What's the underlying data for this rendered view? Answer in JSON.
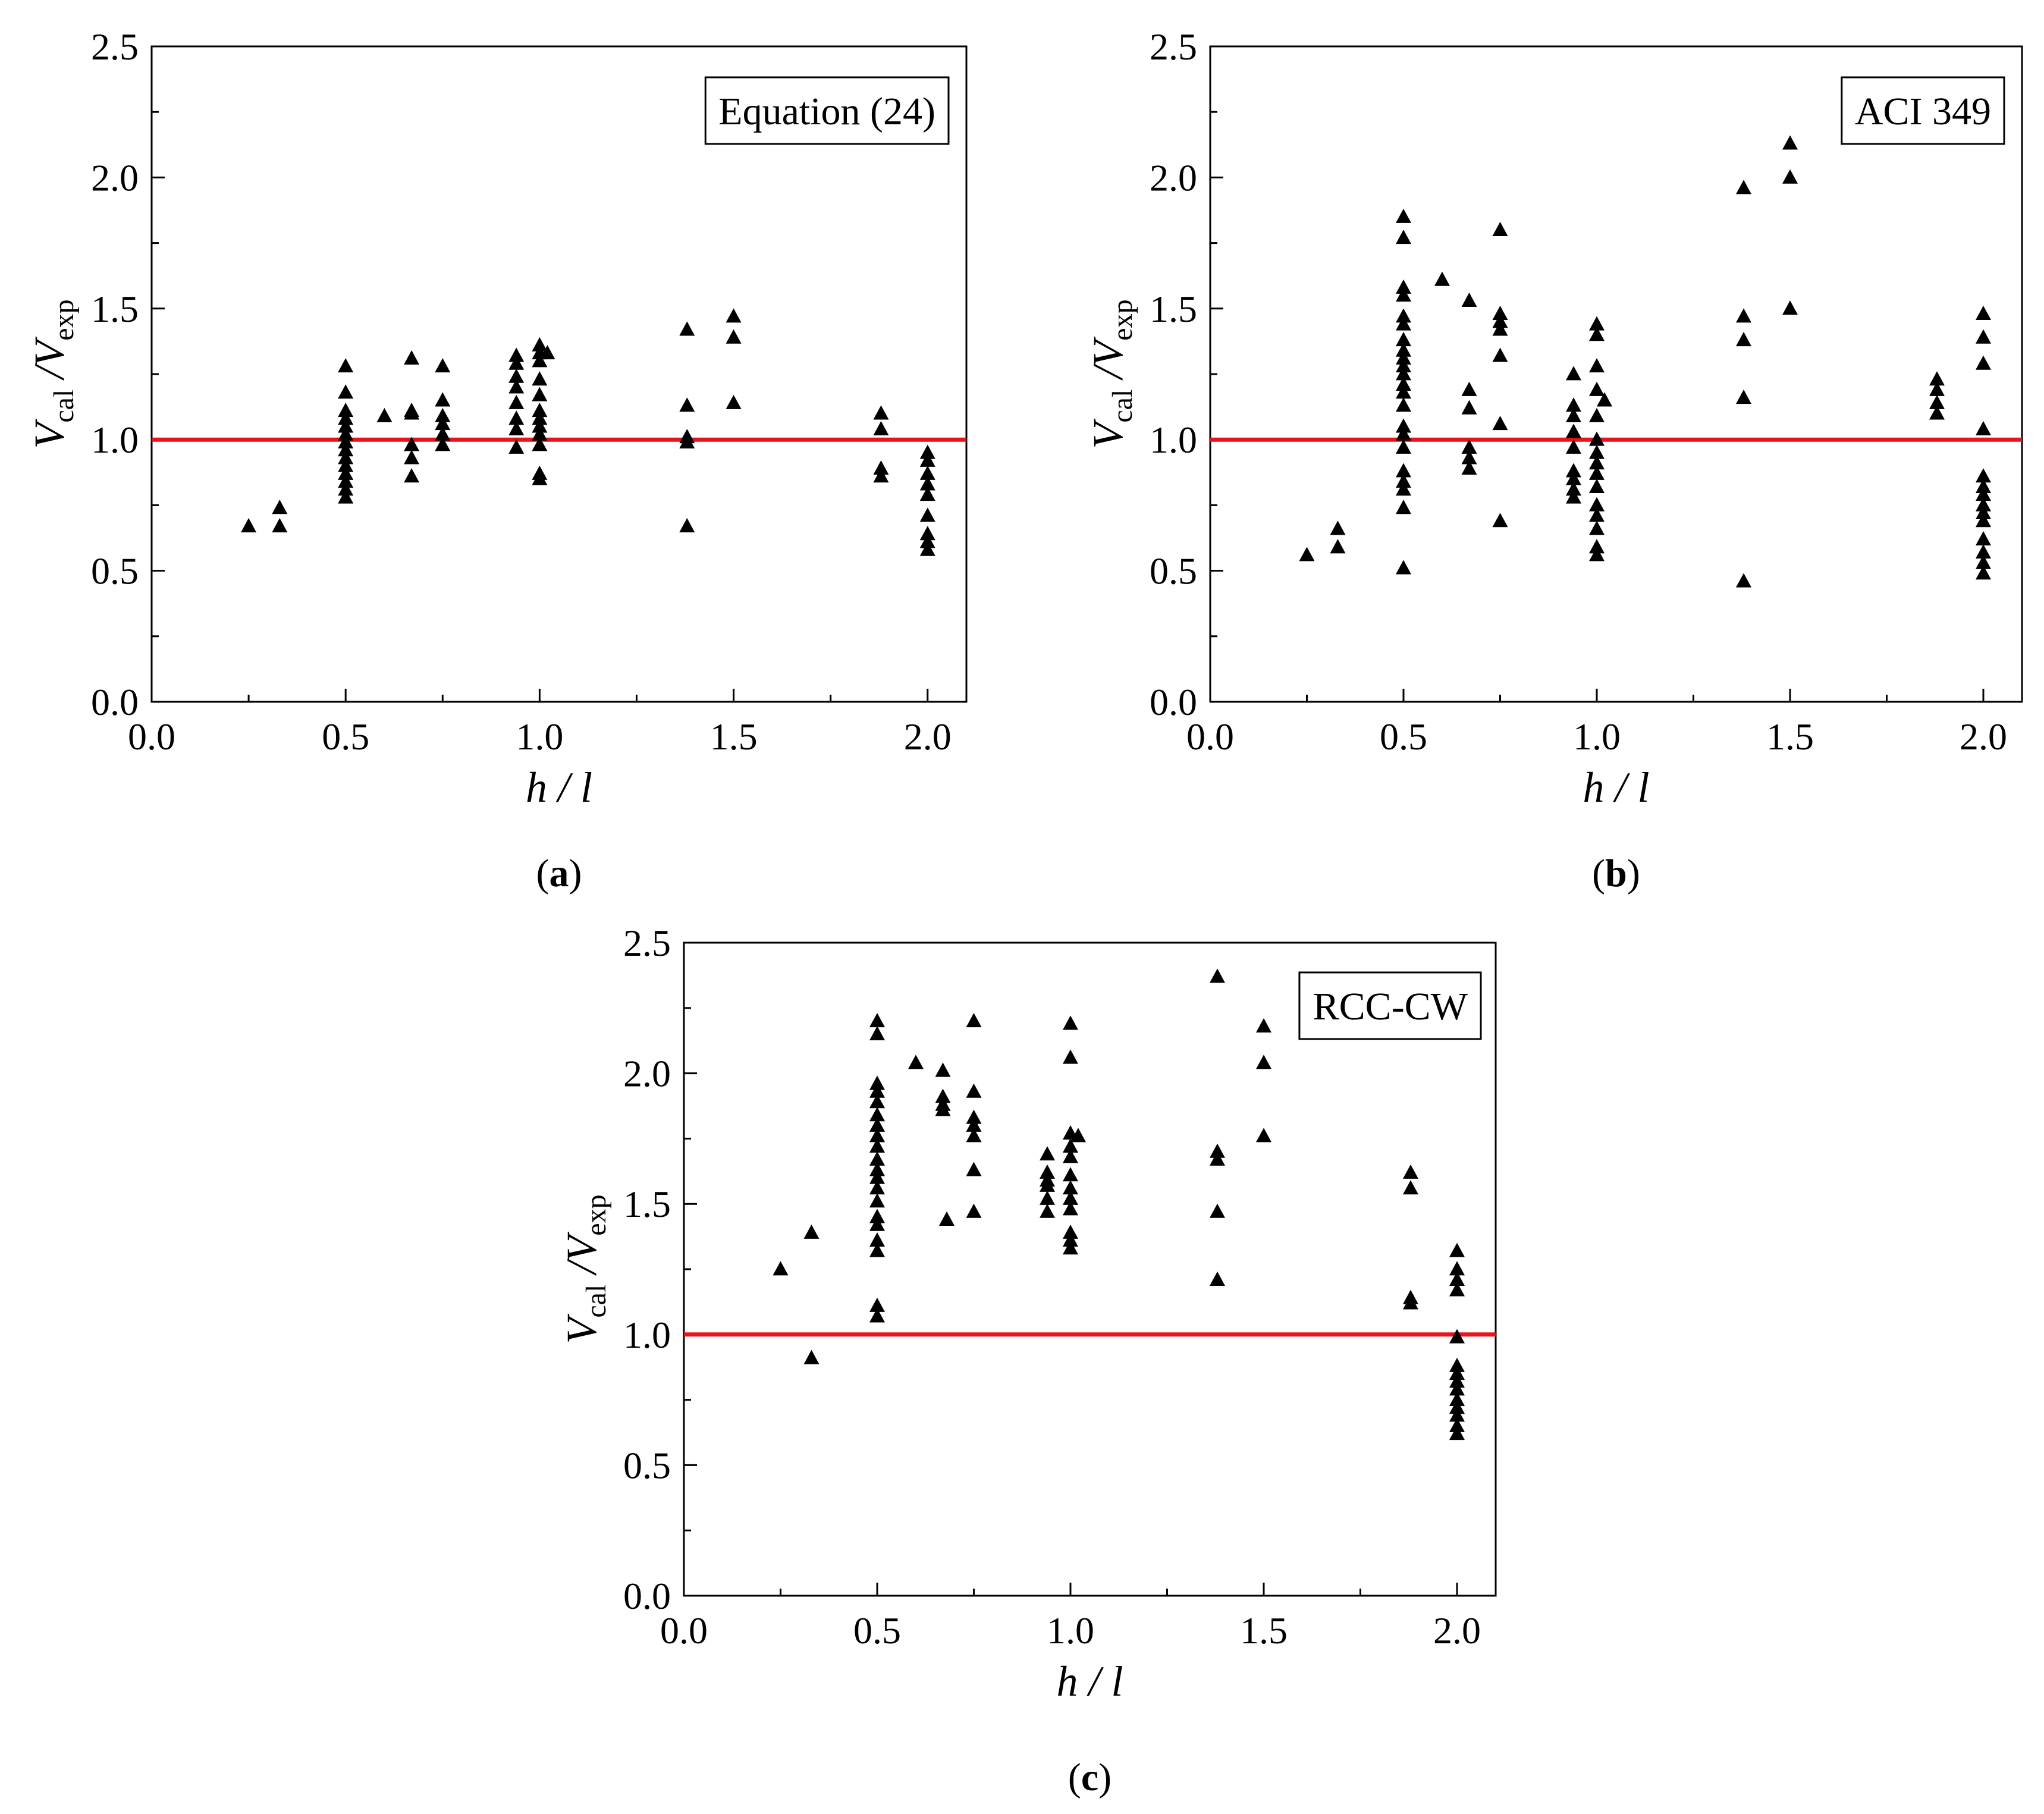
{
  "chart_data": [
    {
      "id": "a",
      "type": "scatter",
      "label_box": "Equation (24)",
      "caption_letter": "a",
      "xlabel": "h / l",
      "ylabel": {
        "main": "V",
        "sub1": "cal",
        "sep": " /V",
        "sub2": "exp"
      },
      "xlim": [
        0.0,
        2.1
      ],
      "ylim": [
        0.0,
        2.5
      ],
      "xticks": [
        "0.0",
        "0.5",
        "1.0",
        "1.5",
        "2.0"
      ],
      "yticks": [
        "0.0",
        "0.5",
        "1.0",
        "1.5",
        "2.0",
        "2.5"
      ],
      "reference_line": {
        "y": 1.0,
        "color": "#e8141c"
      },
      "marker": "triangle",
      "points": [
        [
          0.25,
          0.67
        ],
        [
          0.33,
          0.67
        ],
        [
          0.33,
          0.74
        ],
        [
          0.5,
          0.78
        ],
        [
          0.5,
          0.81
        ],
        [
          0.5,
          0.84
        ],
        [
          0.5,
          0.87
        ],
        [
          0.5,
          0.9
        ],
        [
          0.5,
          0.93
        ],
        [
          0.5,
          0.96
        ],
        [
          0.5,
          0.99
        ],
        [
          0.5,
          1.02
        ],
        [
          0.5,
          1.05
        ],
        [
          0.5,
          1.08
        ],
        [
          0.5,
          1.11
        ],
        [
          0.5,
          1.18
        ],
        [
          0.5,
          1.28
        ],
        [
          0.6,
          1.09
        ],
        [
          0.67,
          0.86
        ],
        [
          0.67,
          0.93
        ],
        [
          0.67,
          0.98
        ],
        [
          0.67,
          1.1
        ],
        [
          0.67,
          1.11
        ],
        [
          0.67,
          1.31
        ],
        [
          0.75,
          0.98
        ],
        [
          0.75,
          1.02
        ],
        [
          0.75,
          1.06
        ],
        [
          0.75,
          1.09
        ],
        [
          0.75,
          1.15
        ],
        [
          0.75,
          1.28
        ],
        [
          0.94,
          0.97
        ],
        [
          0.94,
          1.04
        ],
        [
          0.94,
          1.08
        ],
        [
          0.94,
          1.14
        ],
        [
          0.94,
          1.2
        ],
        [
          0.94,
          1.24
        ],
        [
          0.94,
          1.29
        ],
        [
          0.94,
          1.32
        ],
        [
          1.0,
          0.85
        ],
        [
          1.0,
          0.87
        ],
        [
          1.0,
          0.98
        ],
        [
          1.0,
          1.02
        ],
        [
          1.0,
          1.05
        ],
        [
          1.0,
          1.08
        ],
        [
          1.0,
          1.11
        ],
        [
          1.0,
          1.17
        ],
        [
          1.0,
          1.23
        ],
        [
          1.0,
          1.3
        ],
        [
          1.0,
          1.33
        ],
        [
          1.0,
          1.36
        ],
        [
          1.02,
          1.33
        ],
        [
          1.38,
          0.67
        ],
        [
          1.38,
          0.99
        ],
        [
          1.38,
          1.01
        ],
        [
          1.38,
          1.13
        ],
        [
          1.38,
          1.42
        ],
        [
          1.5,
          1.14
        ],
        [
          1.5,
          1.39
        ],
        [
          1.5,
          1.47
        ],
        [
          1.88,
          0.86
        ],
        [
          1.88,
          0.89
        ],
        [
          1.88,
          1.04
        ],
        [
          1.88,
          1.1
        ],
        [
          2.0,
          0.58
        ],
        [
          2.0,
          0.61
        ],
        [
          2.0,
          0.64
        ],
        [
          2.0,
          0.71
        ],
        [
          2.0,
          0.79
        ],
        [
          2.0,
          0.83
        ],
        [
          2.0,
          0.87
        ],
        [
          2.0,
          0.92
        ],
        [
          2.0,
          0.95
        ]
      ]
    },
    {
      "id": "b",
      "type": "scatter",
      "label_box": "ACI 349",
      "caption_letter": "b",
      "xlabel": "h / l",
      "ylabel": {
        "main": "V",
        "sub1": "cal",
        "sep": " /V",
        "sub2": "exp"
      },
      "xlim": [
        0.0,
        2.1
      ],
      "ylim": [
        0.0,
        2.5
      ],
      "xticks": [
        "0.0",
        "0.5",
        "1.0",
        "1.5",
        "2.0"
      ],
      "yticks": [
        "0.0",
        "0.5",
        "1.0",
        "1.5",
        "2.0",
        "2.5"
      ],
      "reference_line": {
        "y": 1.0,
        "color": "#e8141c"
      },
      "marker": "triangle",
      "points": [
        [
          0.25,
          0.56
        ],
        [
          0.33,
          0.59
        ],
        [
          0.33,
          0.66
        ],
        [
          0.5,
          0.51
        ],
        [
          0.5,
          0.74
        ],
        [
          0.5,
          0.81
        ],
        [
          0.5,
          0.84
        ],
        [
          0.5,
          0.88
        ],
        [
          0.5,
          0.97
        ],
        [
          0.5,
          1.02
        ],
        [
          0.5,
          1.05
        ],
        [
          0.5,
          1.13
        ],
        [
          0.5,
          1.18
        ],
        [
          0.5,
          1.21
        ],
        [
          0.5,
          1.25
        ],
        [
          0.5,
          1.28
        ],
        [
          0.5,
          1.31
        ],
        [
          0.5,
          1.34
        ],
        [
          0.5,
          1.38
        ],
        [
          0.5,
          1.44
        ],
        [
          0.5,
          1.47
        ],
        [
          0.5,
          1.55
        ],
        [
          0.5,
          1.58
        ],
        [
          0.5,
          1.77
        ],
        [
          0.5,
          1.85
        ],
        [
          0.6,
          1.61
        ],
        [
          0.67,
          0.89
        ],
        [
          0.67,
          0.93
        ],
        [
          0.67,
          0.97
        ],
        [
          0.67,
          1.12
        ],
        [
          0.67,
          1.19
        ],
        [
          0.67,
          1.53
        ],
        [
          0.75,
          0.69
        ],
        [
          0.75,
          1.06
        ],
        [
          0.75,
          1.32
        ],
        [
          0.75,
          1.42
        ],
        [
          0.75,
          1.45
        ],
        [
          0.75,
          1.48
        ],
        [
          0.75,
          1.8
        ],
        [
          0.94,
          0.78
        ],
        [
          0.94,
          0.81
        ],
        [
          0.94,
          0.85
        ],
        [
          0.94,
          0.88
        ],
        [
          0.94,
          0.97
        ],
        [
          0.94,
          1.03
        ],
        [
          0.94,
          1.09
        ],
        [
          0.94,
          1.13
        ],
        [
          0.94,
          1.25
        ],
        [
          1.0,
          0.56
        ],
        [
          1.0,
          0.59
        ],
        [
          1.0,
          0.66
        ],
        [
          1.0,
          0.71
        ],
        [
          1.0,
          0.75
        ],
        [
          1.0,
          0.82
        ],
        [
          1.0,
          0.87
        ],
        [
          1.0,
          0.91
        ],
        [
          1.0,
          0.95
        ],
        [
          1.0,
          1.0
        ],
        [
          1.0,
          1.09
        ],
        [
          1.0,
          1.19
        ],
        [
          1.0,
          1.28
        ],
        [
          1.0,
          1.4
        ],
        [
          1.0,
          1.44
        ],
        [
          1.02,
          1.15
        ],
        [
          1.38,
          0.46
        ],
        [
          1.38,
          1.16
        ],
        [
          1.38,
          1.38
        ],
        [
          1.38,
          1.47
        ],
        [
          1.38,
          1.96
        ],
        [
          1.5,
          1.5
        ],
        [
          1.5,
          2.0
        ],
        [
          1.5,
          2.13
        ],
        [
          1.88,
          1.1
        ],
        [
          1.88,
          1.14
        ],
        [
          1.88,
          1.19
        ],
        [
          1.88,
          1.23
        ],
        [
          2.0,
          0.49
        ],
        [
          2.0,
          0.53
        ],
        [
          2.0,
          0.57
        ],
        [
          2.0,
          0.62
        ],
        [
          2.0,
          0.69
        ],
        [
          2.0,
          0.72
        ],
        [
          2.0,
          0.75
        ],
        [
          2.0,
          0.79
        ],
        [
          2.0,
          0.82
        ],
        [
          2.0,
          0.86
        ],
        [
          2.0,
          1.04
        ],
        [
          2.0,
          1.29
        ],
        [
          2.0,
          1.39
        ],
        [
          2.0,
          1.48
        ]
      ]
    },
    {
      "id": "c",
      "type": "scatter",
      "label_box": "RCC-CW",
      "caption_letter": "c",
      "xlabel": "h / l",
      "ylabel": {
        "main": "V",
        "sub1": "cal",
        "sep": " /V",
        "sub2": "exp"
      },
      "xlim": [
        0.0,
        2.1
      ],
      "ylim": [
        0.0,
        2.5
      ],
      "xticks": [
        "0.0",
        "0.5",
        "1.0",
        "1.5",
        "2.0"
      ],
      "yticks": [
        "0.0",
        "0.5",
        "1.0",
        "1.5",
        "2.0",
        "2.5"
      ],
      "reference_line": {
        "y": 1.0,
        "color": "#e8141c"
      },
      "marker": "triangle",
      "points": [
        [
          0.25,
          1.25
        ],
        [
          0.33,
          0.91
        ],
        [
          0.33,
          1.39
        ],
        [
          0.5,
          1.07
        ],
        [
          0.5,
          1.11
        ],
        [
          0.5,
          1.32
        ],
        [
          0.5,
          1.36
        ],
        [
          0.5,
          1.42
        ],
        [
          0.5,
          1.45
        ],
        [
          0.5,
          1.51
        ],
        [
          0.5,
          1.56
        ],
        [
          0.5,
          1.6
        ],
        [
          0.5,
          1.63
        ],
        [
          0.5,
          1.67
        ],
        [
          0.5,
          1.72
        ],
        [
          0.5,
          1.76
        ],
        [
          0.5,
          1.8
        ],
        [
          0.5,
          1.84
        ],
        [
          0.5,
          1.89
        ],
        [
          0.5,
          1.93
        ],
        [
          0.5,
          1.96
        ],
        [
          0.5,
          2.15
        ],
        [
          0.5,
          2.2
        ],
        [
          0.6,
          2.04
        ],
        [
          0.67,
          1.86
        ],
        [
          0.67,
          1.88
        ],
        [
          0.67,
          1.91
        ],
        [
          0.67,
          2.01
        ],
        [
          0.68,
          1.44
        ],
        [
          0.75,
          1.47
        ],
        [
          0.75,
          1.63
        ],
        [
          0.75,
          1.76
        ],
        [
          0.75,
          1.8
        ],
        [
          0.75,
          1.83
        ],
        [
          0.75,
          1.93
        ],
        [
          0.75,
          2.2
        ],
        [
          0.94,
          1.47
        ],
        [
          0.94,
          1.52
        ],
        [
          0.94,
          1.57
        ],
        [
          0.94,
          1.59
        ],
        [
          0.94,
          1.62
        ],
        [
          0.94,
          1.69
        ],
        [
          1.0,
          1.33
        ],
        [
          1.0,
          1.36
        ],
        [
          1.0,
          1.39
        ],
        [
          1.0,
          1.48
        ],
        [
          1.0,
          1.52
        ],
        [
          1.0,
          1.56
        ],
        [
          1.0,
          1.61
        ],
        [
          1.0,
          1.68
        ],
        [
          1.0,
          1.72
        ],
        [
          1.0,
          1.77
        ],
        [
          1.0,
          2.06
        ],
        [
          1.0,
          2.19
        ],
        [
          1.02,
          1.76
        ],
        [
          1.38,
          1.21
        ],
        [
          1.38,
          1.47
        ],
        [
          1.38,
          1.67
        ],
        [
          1.38,
          1.7
        ],
        [
          1.38,
          2.37
        ],
        [
          1.5,
          1.76
        ],
        [
          1.5,
          2.04
        ],
        [
          1.5,
          2.18
        ],
        [
          1.88,
          1.12
        ],
        [
          1.88,
          1.14
        ],
        [
          1.88,
          1.56
        ],
        [
          1.88,
          1.62
        ],
        [
          2.0,
          0.62
        ],
        [
          2.0,
          0.65
        ],
        [
          2.0,
          0.69
        ],
        [
          2.0,
          0.72
        ],
        [
          2.0,
          0.75
        ],
        [
          2.0,
          0.79
        ],
        [
          2.0,
          0.82
        ],
        [
          2.0,
          0.85
        ],
        [
          2.0,
          0.88
        ],
        [
          2.0,
          0.99
        ],
        [
          2.0,
          1.17
        ],
        [
          2.0,
          1.21
        ],
        [
          2.0,
          1.25
        ],
        [
          2.0,
          1.32
        ]
      ]
    }
  ]
}
